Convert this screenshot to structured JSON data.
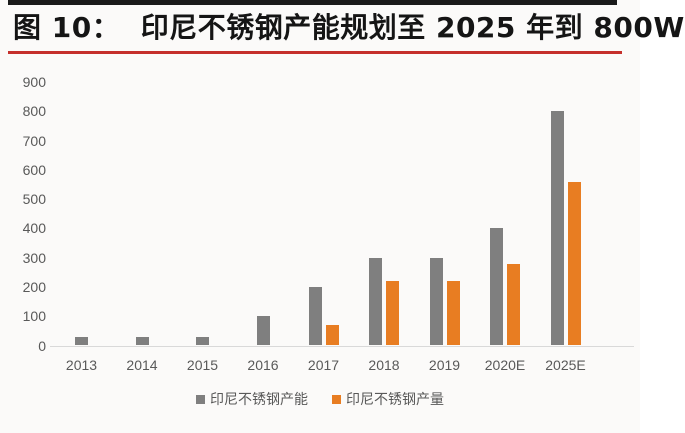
{
  "figure": {
    "title": "图 10：  印尼不锈钢产能规划至 2025 年到 800W"
  },
  "colors": {
    "top_bar": "#1A1A1A",
    "title_underline_red": "#C5302C",
    "capacity_gray": "#7F7F7F",
    "output_orange": "#E87D22",
    "axis_text": "#595959",
    "axis_line": "#D9D9D9",
    "background": "#FBFAF9"
  },
  "chart_data": {
    "type": "bar",
    "title": "",
    "xlabel": "",
    "ylabel": "",
    "categories": [
      "2013",
      "2014",
      "2015",
      "2016",
      "2017",
      "2018",
      "2019",
      "2020E",
      "2025E"
    ],
    "series": [
      {
        "name": "印尼不锈钢产能",
        "color_key": "capacity_gray",
        "values": [
          30,
          30,
          30,
          100,
          200,
          300,
          300,
          400,
          800
        ]
      },
      {
        "name": "印尼不锈钢产量",
        "color_key": "output_orange",
        "values": [
          null,
          null,
          null,
          null,
          70,
          220,
          220,
          280,
          560
        ]
      }
    ],
    "ylim": [
      0,
      900
    ],
    "yticks": [
      0,
      100,
      200,
      300,
      400,
      500,
      600,
      700,
      800,
      900
    ],
    "grid": false,
    "legend_position": "bottom"
  }
}
